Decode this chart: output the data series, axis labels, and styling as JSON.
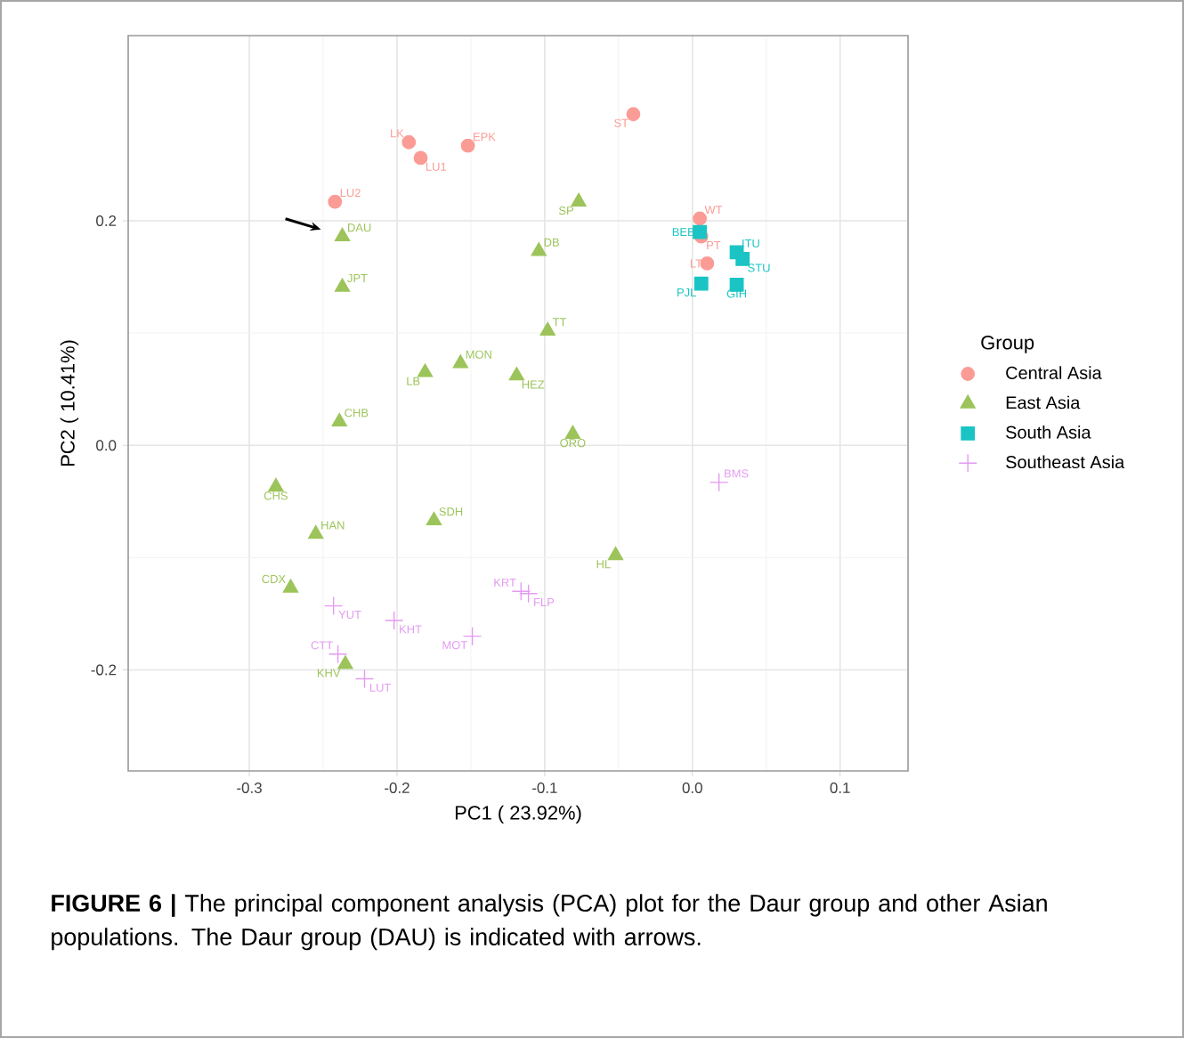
{
  "chart_data": {
    "type": "scatter",
    "xlabel": "PC1 ( 23.92%)",
    "ylabel": "PC2 ( 10.41%)",
    "legend_title": "Group",
    "xlim": [
      -0.382,
      0.146
    ],
    "ylim": [
      -0.29,
      0.365
    ],
    "xticks": [
      -0.3,
      -0.2,
      -0.1,
      {
        "value": 0,
        "label": "0.0"
      },
      0.1
    ],
    "yticks": [
      -0.2,
      {
        "value": 0,
        "label": "0.0"
      },
      0.2
    ],
    "grid": true,
    "legend": "right",
    "series": [
      {
        "name": "Central Asia",
        "color": "#fa9c95",
        "marker": "circle",
        "x": [
          -0.192,
          -0.184,
          -0.152,
          -0.04,
          -0.242,
          0.005,
          0.006,
          0.01
        ],
        "values": [
          0.27,
          0.256,
          0.267,
          0.295,
          0.217,
          0.202,
          0.186,
          0.162
        ]
      },
      {
        "name": "East Asia",
        "color": "#9cc45a",
        "marker": "triangle",
        "x": [
          -0.077,
          -0.237,
          -0.104,
          -0.237,
          -0.098,
          -0.157,
          -0.181,
          -0.119,
          -0.239,
          -0.081,
          -0.282,
          -0.175,
          -0.255,
          -0.052,
          -0.272,
          -0.235
        ],
        "values": [
          0.217,
          0.186,
          0.173,
          0.141,
          0.102,
          0.073,
          0.065,
          0.062,
          0.021,
          0.01,
          -0.037,
          -0.067,
          -0.079,
          -0.098,
          -0.127,
          -0.195
        ]
      },
      {
        "name": "South Asia",
        "color": "#1ac4c4",
        "marker": "square",
        "x": [
          0.005,
          0.03,
          0.034,
          0.006,
          0.03
        ],
        "values": [
          0.19,
          0.172,
          0.166,
          0.144,
          0.143
        ]
      },
      {
        "name": "Southeast Asia",
        "color": "#e49af2",
        "marker": "cross",
        "x": [
          -0.243,
          -0.202,
          -0.149,
          -0.116,
          -0.111,
          -0.24,
          -0.222,
          0.018
        ],
        "values": [
          -0.143,
          -0.156,
          -0.17,
          -0.13,
          -0.132,
          -0.186,
          -0.208,
          -0.033
        ]
      }
    ],
    "annotations": [
      {
        "text": "LK",
        "x": -0.192,
        "y": 0.27
      },
      {
        "text": "LU1",
        "x": -0.184,
        "y": 0.256
      },
      {
        "text": "EPK",
        "x": -0.152,
        "y": 0.267
      },
      {
        "text": "ST",
        "x": -0.04,
        "y": 0.295
      },
      {
        "text": "LU2",
        "x": -0.242,
        "y": 0.217
      },
      {
        "text": "WT",
        "x": 0.005,
        "y": 0.202
      },
      {
        "text": "PT",
        "x": 0.006,
        "y": 0.186
      },
      {
        "text": "LT",
        "x": 0.01,
        "y": 0.162
      },
      {
        "text": "SP",
        "x": -0.077,
        "y": 0.217
      },
      {
        "text": "DAU",
        "x": -0.237,
        "y": 0.186
      },
      {
        "text": "DB",
        "x": -0.104,
        "y": 0.173
      },
      {
        "text": "JPT",
        "x": -0.237,
        "y": 0.141
      },
      {
        "text": "TT",
        "x": -0.098,
        "y": 0.102
      },
      {
        "text": "MON",
        "x": -0.157,
        "y": 0.073
      },
      {
        "text": "LB",
        "x": -0.181,
        "y": 0.065
      },
      {
        "text": "HEZ",
        "x": -0.119,
        "y": 0.062
      },
      {
        "text": "CHB",
        "x": -0.239,
        "y": 0.021
      },
      {
        "text": "ORO",
        "x": -0.081,
        "y": 0.01
      },
      {
        "text": "CHS",
        "x": -0.282,
        "y": -0.037
      },
      {
        "text": "SDH",
        "x": -0.175,
        "y": -0.067
      },
      {
        "text": "HAN",
        "x": -0.255,
        "y": -0.079
      },
      {
        "text": "HL",
        "x": -0.052,
        "y": -0.098
      },
      {
        "text": "CDX",
        "x": -0.272,
        "y": -0.127
      },
      {
        "text": "KHV",
        "x": -0.235,
        "y": -0.195
      },
      {
        "text": "YUT",
        "x": -0.243,
        "y": -0.143
      },
      {
        "text": "KHT",
        "x": -0.202,
        "y": -0.156
      },
      {
        "text": "MOT",
        "x": -0.149,
        "y": -0.17
      },
      {
        "text": "KRT",
        "x": -0.116,
        "y": -0.13
      },
      {
        "text": "FLP",
        "x": -0.111,
        "y": -0.132
      },
      {
        "text": "CTT",
        "x": -0.24,
        "y": -0.186
      },
      {
        "text": "LUT",
        "x": -0.222,
        "y": -0.208
      },
      {
        "text": "BMS",
        "x": 0.018,
        "y": -0.033
      },
      {
        "text": "BEB",
        "x": 0.005,
        "y": 0.19
      },
      {
        "text": "ITU",
        "x": 0.03,
        "y": 0.172
      },
      {
        "text": "STU",
        "x": 0.034,
        "y": 0.166
      },
      {
        "text": "PJL",
        "x": 0.006,
        "y": 0.144
      },
      {
        "text": "GIH",
        "x": 0.03,
        "y": 0.143
      },
      "**FIGURE 6 |** The principal component analysis (PCA) plot for the Daur group and other Asian populations. The Daur group (DAU) is indicated with arrows."
    ]
  }
}
